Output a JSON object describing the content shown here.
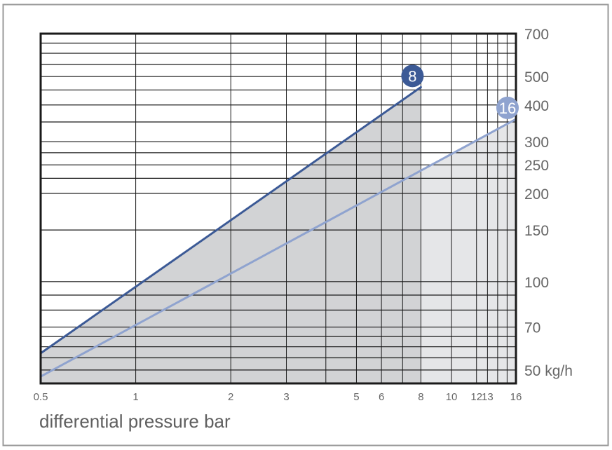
{
  "chart_data": {
    "type": "line",
    "x_scale": "log",
    "y_scale": "log",
    "xlim": [
      0.5,
      16
    ],
    "ylim": [
      45,
      700
    ],
    "xlabel": "differential pressure bar",
    "ylabel": "",
    "x_ticks": [
      0.5,
      1,
      2,
      3,
      5,
      6,
      8,
      10,
      12,
      13,
      16
    ],
    "x_tick_labels": [
      "0.5",
      "1",
      "2",
      "3",
      "5",
      "6",
      "8",
      "10",
      "12",
      "13",
      "16"
    ],
    "x_gridlines": [
      0.5,
      1,
      2,
      3,
      4,
      5,
      6,
      7,
      8,
      10,
      12,
      13,
      14,
      15,
      16
    ],
    "y_ticks": [
      50,
      70,
      100,
      150,
      200,
      250,
      300,
      400,
      500,
      700
    ],
    "y_tick_labels": [
      "50 kg/h",
      "70",
      "100",
      "150",
      "200",
      "250",
      "300",
      "400",
      "500",
      "700"
    ],
    "y_gridlines": [
      50,
      55,
      60,
      65,
      70,
      80,
      90,
      100,
      150,
      200,
      225,
      250,
      275,
      300,
      350,
      400,
      450,
      500,
      550,
      600,
      650,
      700
    ],
    "grid": true,
    "series": [
      {
        "name": "8",
        "color": "#3c5a96",
        "fill": "#d2d3d5",
        "x": [
          0.5,
          8
        ],
        "y": [
          57,
          460
        ]
      },
      {
        "name": "16",
        "color": "#8fa3cf",
        "fill": "#e5e6e8",
        "x": [
          0.5,
          16
        ],
        "y": [
          47.5,
          358
        ]
      }
    ]
  }
}
